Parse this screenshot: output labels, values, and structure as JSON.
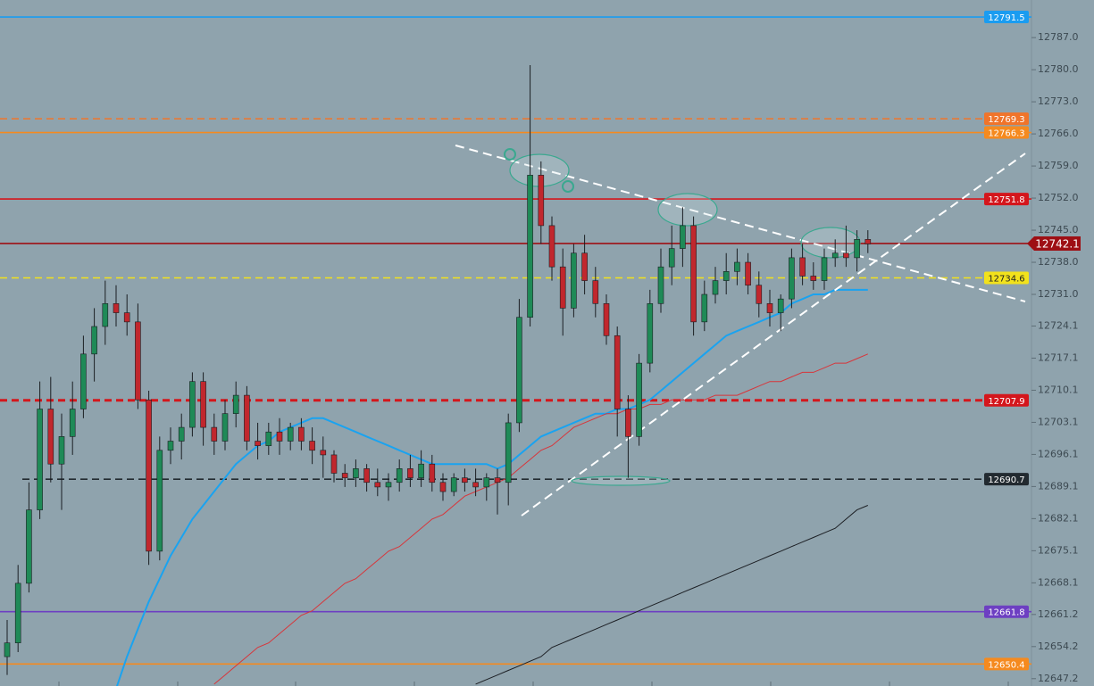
{
  "chart_data": {
    "type": "candlestick",
    "ylim": [
      12645.6,
      12795.2
    ],
    "yticks": [
      {
        "value": 12787.0,
        "label": "12787.0"
      },
      {
        "value": 12780.0,
        "label": "12780.0"
      },
      {
        "value": 12773.0,
        "label": "12773.0"
      },
      {
        "value": 12766.0,
        "label": "12766.0"
      },
      {
        "value": 12759.0,
        "label": "12759.0"
      },
      {
        "value": 12752.0,
        "label": "12752.0"
      },
      {
        "value": 12745.0,
        "label": "12745.0"
      },
      {
        "value": 12738.0,
        "label": "12738.0"
      },
      {
        "value": 12731.0,
        "label": "12731.0"
      },
      12724.1,
      12717.1,
      12710.1,
      12703.1,
      12696.1,
      12689.1,
      12682.1,
      12675.1,
      12668.1,
      12661.2,
      12654.2,
      12647.2
    ],
    "up_color": "#1f8a57",
    "down_color": "#c1272d",
    "candles": [
      [
        12652,
        12660,
        12648,
        12655
      ],
      [
        12655,
        12672,
        12653,
        12668
      ],
      [
        12668,
        12690,
        12666,
        12684
      ],
      [
        12684,
        12712,
        12682,
        12706
      ],
      [
        12706,
        12713,
        12690,
        12694
      ],
      [
        12694,
        12705,
        12684,
        12700
      ],
      [
        12700,
        12712,
        12696,
        12706
      ],
      [
        12706,
        12722,
        12704,
        12718
      ],
      [
        12718,
        12728,
        12712,
        12724
      ],
      [
        12724,
        12734,
        12720,
        12729
      ],
      [
        12729,
        12733,
        12724,
        12727
      ],
      [
        12727,
        12731,
        12722,
        12725
      ],
      [
        12725,
        12729,
        12706,
        12708
      ],
      [
        12708,
        12710,
        12672,
        12675
      ],
      [
        12675,
        12700,
        12673,
        12697
      ],
      [
        12697,
        12702,
        12694,
        12699
      ],
      [
        12699,
        12705,
        12695,
        12702
      ],
      [
        12702,
        12714,
        12700,
        12712
      ],
      [
        12712,
        12714,
        12698,
        12702
      ],
      [
        12702,
        12705,
        12696,
        12699
      ],
      [
        12699,
        12708,
        12697,
        12705
      ],
      [
        12705,
        12712,
        12702,
        12709
      ],
      [
        12709,
        12711,
        12697,
        12699
      ],
      [
        12699,
        12703,
        12695,
        12698
      ],
      [
        12698,
        12703,
        12696,
        12701
      ],
      [
        12701,
        12704,
        12696,
        12699
      ],
      [
        12699,
        12703,
        12697,
        12702
      ],
      [
        12702,
        12704,
        12697,
        12699
      ],
      [
        12699,
        12702,
        12694,
        12697
      ],
      [
        12697,
        12700,
        12691,
        12696
      ],
      [
        12696,
        12697,
        12690,
        12692
      ],
      [
        12692,
        12694,
        12689,
        12691
      ],
      [
        12691,
        12695,
        12689,
        12693
      ],
      [
        12693,
        12694,
        12688,
        12690
      ],
      [
        12690,
        12693,
        12687,
        12689
      ],
      [
        12689,
        12692,
        12686,
        12690
      ],
      [
        12690,
        12695,
        12688,
        12693
      ],
      [
        12693,
        12696,
        12689,
        12691
      ],
      [
        12691,
        12697,
        12689,
        12694
      ],
      [
        12694,
        12696,
        12688,
        12690
      ],
      [
        12690,
        12692,
        12686,
        12688
      ],
      [
        12688,
        12692,
        12687,
        12691
      ],
      [
        12691,
        12693,
        12688,
        12690
      ],
      [
        12690,
        12693,
        12687,
        12689
      ],
      [
        12689,
        12692,
        12686,
        12691
      ],
      [
        12691,
        12693,
        12683,
        12690
      ],
      [
        12690,
        12705,
        12685,
        12703
      ],
      [
        12703,
        12730,
        12701,
        12726
      ],
      [
        12726,
        12781,
        12724,
        12757
      ],
      [
        12757,
        12760,
        12742,
        12746
      ],
      [
        12746,
        12748,
        12734,
        12737
      ],
      [
        12737,
        12741,
        12722,
        12728
      ],
      [
        12728,
        12742,
        12726,
        12740
      ],
      [
        12740,
        12744,
        12731,
        12734
      ],
      [
        12734,
        12737,
        12726,
        12729
      ],
      [
        12729,
        12731,
        12720,
        12722
      ],
      [
        12722,
        12724,
        12700,
        12706
      ],
      [
        12706,
        12709,
        12691,
        12700
      ],
      [
        12700,
        12718,
        12698,
        12716
      ],
      [
        12716,
        12732,
        12714,
        12729
      ],
      [
        12729,
        12741,
        12727,
        12737
      ],
      [
        12737,
        12746,
        12733,
        12741
      ],
      [
        12741,
        12750,
        12737,
        12746
      ],
      [
        12746,
        12748,
        12722,
        12725
      ],
      [
        12725,
        12734,
        12723,
        12731
      ],
      [
        12731,
        12737,
        12729,
        12734
      ],
      [
        12734,
        12740,
        12731,
        12736
      ],
      [
        12736,
        12741,
        12733,
        12738
      ],
      [
        12738,
        12740,
        12731,
        12733
      ],
      [
        12733,
        12736,
        12726,
        12729
      ],
      [
        12729,
        12732,
        12724,
        12727
      ],
      [
        12727,
        12731,
        12723,
        12730
      ],
      [
        12730,
        12741,
        12728,
        12739
      ],
      [
        12739,
        12742,
        12733,
        12735
      ],
      [
        12735,
        12738,
        12732,
        12734
      ],
      [
        12734,
        12741,
        12732,
        12739
      ],
      [
        12739,
        12743,
        12737,
        12740
      ],
      [
        12740,
        12746,
        12737,
        12739
      ],
      [
        12739,
        12745,
        12736,
        12743
      ],
      [
        12743,
        12745,
        12740,
        12742
      ]
    ],
    "lines": [
      {
        "color": "#1aa3f0",
        "values": [
          null,
          null,
          null,
          null,
          null,
          null,
          null,
          null,
          null,
          null,
          12645,
          12652,
          12658,
          12664,
          12669,
          12674,
          12678,
          12682,
          12685,
          12688,
          12691,
          12694,
          12696,
          12698,
          12699,
          12701,
          12702,
          12703,
          12704,
          12704,
          12703,
          12702,
          12701,
          12700,
          12699,
          12698,
          12697,
          12696,
          12695,
          12694,
          12694,
          12694,
          12694,
          12694,
          12694,
          12693,
          12694,
          12696,
          12698,
          12700,
          12701,
          12702,
          12703,
          12704,
          12705,
          12705,
          12706,
          12706,
          12707,
          12708,
          12710,
          12712,
          12714,
          12716,
          12718,
          12720,
          12722,
          12723,
          12724,
          12725,
          12726,
          12727,
          12729,
          12730,
          12731,
          12731,
          12732,
          12732,
          12732,
          12732
        ]
      },
      {
        "color": "#d8353a",
        "values": [
          null,
          null,
          null,
          null,
          null,
          null,
          null,
          null,
          null,
          null,
          null,
          null,
          null,
          null,
          null,
          null,
          null,
          null,
          null,
          12646,
          12648,
          12650,
          12652,
          12654,
          12655,
          12657,
          12659,
          12661,
          12662,
          12664,
          12666,
          12668,
          12669,
          12671,
          12673,
          12675,
          12676,
          12678,
          12680,
          12682,
          12683,
          12685,
          12687,
          12688,
          12689,
          12690,
          12691,
          12693,
          12695,
          12697,
          12698,
          12700,
          12702,
          12703,
          12704,
          12705,
          12705,
          12706,
          12706,
          12707,
          12707,
          12708,
          12708,
          12708,
          12708,
          12709,
          12709,
          12709,
          12710,
          12711,
          12712,
          12712,
          12713,
          12714,
          12714,
          12715,
          12716,
          12716,
          12717,
          12718
        ]
      },
      {
        "color": "#1c1f24",
        "values": [
          null,
          null,
          null,
          null,
          null,
          null,
          null,
          null,
          null,
          null,
          null,
          null,
          null,
          null,
          null,
          null,
          null,
          null,
          null,
          null,
          null,
          null,
          null,
          null,
          null,
          null,
          null,
          null,
          null,
          null,
          null,
          null,
          null,
          null,
          null,
          null,
          null,
          null,
          null,
          null,
          null,
          null,
          null,
          12646,
          12647,
          12648,
          12649,
          12650,
          12651,
          12652,
          12654,
          12655,
          12656,
          12657,
          12658,
          12659,
          12660,
          12661,
          12662,
          12663,
          12664,
          12665,
          12666,
          12667,
          12668,
          12669,
          12670,
          12671,
          12672,
          12673,
          12674,
          12675,
          12676,
          12677,
          12678,
          12679,
          12680,
          12682,
          12684,
          12685
        ]
      }
    ],
    "levels": [
      {
        "value": 12791.5,
        "color": "#1a9cf0",
        "dashed": false
      },
      {
        "value": 12769.3,
        "color": "#f0742a",
        "dashed": true
      },
      {
        "value": 12766.3,
        "color": "#f58a1f",
        "dashed": false
      },
      {
        "value": 12751.8,
        "color": "#d4161c",
        "dashed": false
      },
      {
        "value": 12742.1,
        "color": "#9e0f14",
        "dashed": false
      },
      {
        "value": 12734.6,
        "color": "#f2e21c",
        "dashed": true
      },
      {
        "value": 12707.9,
        "color": "#d4161c",
        "dashed": true
      },
      {
        "value": 12690.7,
        "color": "#222a30",
        "dashed": true
      },
      {
        "value": 12661.8,
        "color": "#6d3fc2",
        "dashed": false
      },
      {
        "value": 12650.4,
        "color": "#f58a1f",
        "dashed": false
      }
    ]
  }
}
